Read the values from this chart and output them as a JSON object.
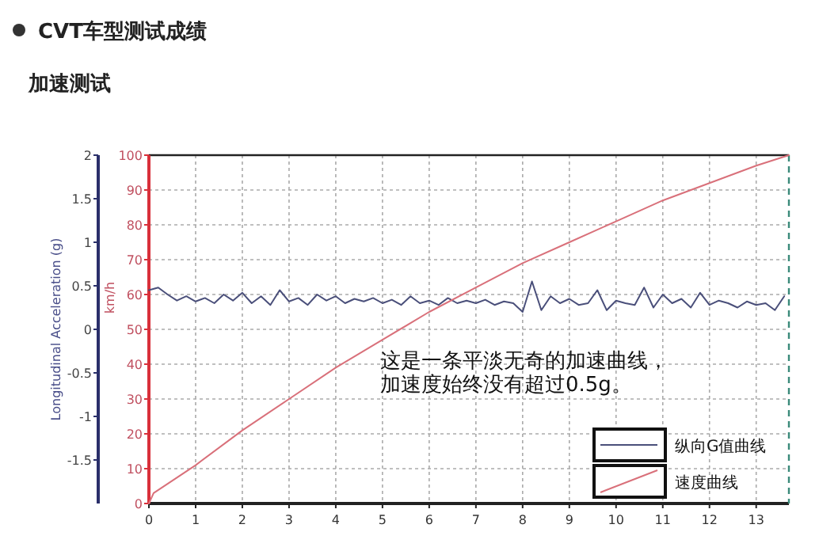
{
  "chart_data": {
    "type": "line",
    "title": "CVT车型测试成绩",
    "subtitle": "加速测试",
    "ylabel": "Longitudinal Acceleration (g)",
    "y2label": "km/h",
    "xlim": [
      0,
      13.7
    ],
    "xticks": [
      0,
      1,
      2,
      3,
      4,
      5,
      6,
      7,
      8,
      9,
      10,
      11,
      12,
      13
    ],
    "ylim": [
      -2,
      2
    ],
    "yticks": [
      -1.5,
      -1,
      {
        "value": -0.5,
        "label": "-0.5"
      },
      0,
      0.5,
      1,
      1.5,
      2
    ],
    "y2lim": [
      0,
      100
    ],
    "y2ticks": [
      0,
      10,
      20,
      30,
      40,
      50,
      60,
      70,
      80,
      90,
      100
    ],
    "grid": true,
    "legend": "bottom right",
    "line_style": "solid",
    "marker": "none",
    "annotations": [
      "这是一条平淡无奇的加速曲线，",
      "加速度始终没有超过0.5g。"
    ],
    "series": [
      {
        "name": "纵向G值曲线",
        "color": "#4a4f7a",
        "x": [
          0,
          0.2,
          0.4,
          0.6,
          0.8,
          1,
          1.2,
          1.4,
          1.6,
          1.8,
          2,
          2.2,
          2.4,
          2.6,
          2.8,
          3,
          3.2,
          3.4,
          3.6,
          3.8,
          4,
          4.2,
          4.4,
          4.6,
          4.8,
          5,
          5.2,
          5.4,
          5.6,
          5.8,
          6,
          6.2,
          6.4,
          6.6,
          6.8,
          7,
          7.2,
          7.4,
          7.6,
          7.8,
          8,
          8.2,
          8.4,
          8.6,
          8.8,
          9,
          9.2,
          9.4,
          9.6,
          9.8,
          10,
          10.2,
          10.4,
          10.6,
          10.8,
          11,
          11.2,
          11.4,
          11.6,
          11.8,
          12,
          12.2,
          12.4,
          12.6,
          12.8,
          13,
          13.2,
          13.4,
          13.6
        ],
        "values": [
          0.45,
          0.48,
          0.4,
          0.33,
          0.38,
          0.32,
          0.36,
          0.3,
          0.4,
          0.33,
          0.42,
          0.3,
          0.38,
          0.28,
          0.45,
          0.32,
          0.36,
          0.28,
          0.4,
          0.33,
          0.38,
          0.3,
          0.35,
          0.32,
          0.36,
          0.3,
          0.34,
          0.28,
          0.38,
          0.3,
          0.33,
          0.28,
          0.36,
          0.3,
          0.33,
          0.3,
          0.34,
          0.28,
          0.32,
          0.3,
          0.2,
          0.55,
          0.22,
          0.38,
          0.3,
          0.35,
          0.28,
          0.3,
          0.45,
          0.22,
          0.33,
          0.3,
          0.28,
          0.48,
          0.25,
          0.4,
          0.3,
          0.35,
          0.25,
          0.42,
          0.28,
          0.33,
          0.3,
          0.25,
          0.32,
          0.28,
          0.3,
          0.22,
          0.38
        ]
      },
      {
        "name": "速度曲线",
        "color": "#d9707a",
        "axis": "y2",
        "x": [
          0,
          0.1,
          1,
          2,
          3,
          4,
          5,
          6,
          7,
          8,
          9,
          10,
          11,
          12,
          13,
          13.7
        ],
        "values": [
          0,
          3,
          11,
          21,
          30,
          39,
          47,
          55,
          62,
          69,
          75,
          81,
          87,
          92,
          97,
          100
        ]
      }
    ]
  }
}
